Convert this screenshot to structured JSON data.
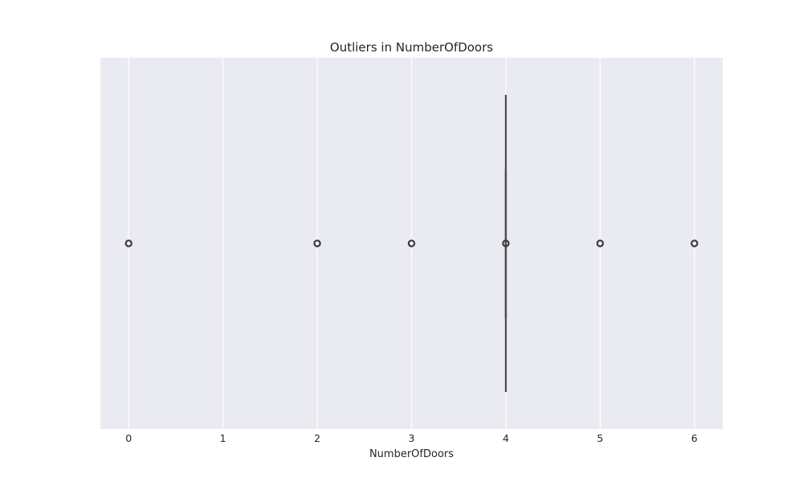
{
  "chart_data": {
    "type": "box",
    "title": "Outliers in NumberOfDoors",
    "xlabel": "NumberOfDoors",
    "ylabel": "",
    "xlim": [
      -0.3,
      6.3
    ],
    "xticks": [
      0,
      1,
      2,
      3,
      4,
      5,
      6
    ],
    "orientation": "horizontal",
    "grid": true,
    "box": {
      "q1": 4,
      "median": 4,
      "q3": 4,
      "whisker_low": 4,
      "whisker_high": 4
    },
    "outliers": [
      0,
      2,
      3,
      4,
      5,
      6
    ],
    "colors": {
      "background": "#eaeaf2",
      "grid": "#ffffff",
      "box_line": "#4d4d4d",
      "outlier": "#3d3d3d",
      "text": "#262626"
    }
  }
}
